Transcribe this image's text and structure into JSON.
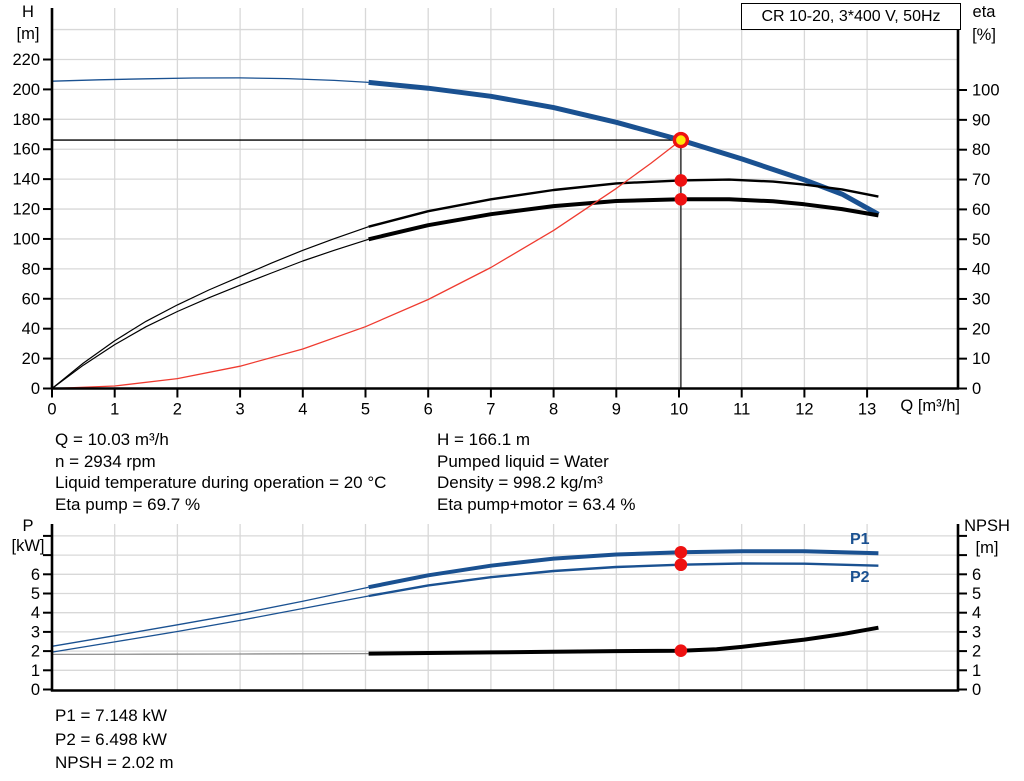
{
  "title_box": {
    "label": "CR 10-20, 3*400 V, 50Hz"
  },
  "colors": {
    "blue": "#1a5191",
    "black": "#000000",
    "red": "#ef3b30",
    "gray": "#8c8c8c",
    "grid": "#d8d8d8",
    "axis": "#000000",
    "duty_fill": "#ffe60a",
    "duty_ring": "#ee1111",
    "dot_red": "#ee1111",
    "label_blue": "#1a5191"
  },
  "top_chart": {
    "left_axis": {
      "title": "H",
      "unit": "[m]",
      "ticks": [
        0,
        20,
        40,
        60,
        80,
        100,
        120,
        140,
        160,
        180,
        200,
        220
      ]
    },
    "right_axis": {
      "title": "eta",
      "unit": "[%]",
      "ticks": [
        0,
        10,
        20,
        30,
        40,
        50,
        60,
        70,
        80,
        90,
        100
      ]
    },
    "x_axis": {
      "label": "Q [m³/h]",
      "ticks": [
        0,
        1,
        2,
        3,
        4,
        5,
        6,
        7,
        8,
        9,
        10,
        11,
        12,
        13
      ]
    }
  },
  "bottom_chart": {
    "left_axis": {
      "title": "P",
      "unit": "[kW]",
      "ticks": [
        0,
        1,
        2,
        3,
        4,
        5,
        6,
        7,
        8
      ],
      "labeled": [
        0,
        1,
        2,
        3,
        4,
        5,
        6
      ]
    },
    "right_axis": {
      "title": "NPSH",
      "unit": "[m]",
      "ticks": [
        0,
        1,
        2,
        3,
        4,
        5,
        6,
        7,
        8
      ],
      "labeled": [
        0,
        1,
        2,
        3,
        4,
        5,
        6
      ]
    },
    "curve_labels": {
      "p1": "P1",
      "p2": "P2"
    }
  },
  "info_top": {
    "left": [
      "Q = 10.03 m³/h",
      "n = 2934 rpm",
      "Liquid temperature during operation = 20 °C",
      "Eta pump = 69.7 %"
    ],
    "right": [
      "H = 166.1 m",
      "Pumped liquid = Water",
      "Density = 998.2 kg/m³",
      "Eta pump+motor = 63.4 %"
    ]
  },
  "info_bottom": [
    "P1 = 7.148 kW",
    "P2 = 6.498 kW",
    "NPSH = 2.02 m"
  ],
  "chart_data": [
    {
      "type": "line",
      "title": "CR 10-20, 3*400 V, 50Hz",
      "xlabel": "Q [m³/h]",
      "x_range": [
        0,
        14.45
      ],
      "left_axis": {
        "label": "H [m]",
        "range": [
          0,
          254
        ]
      },
      "right_axis": {
        "label": "eta [%]",
        "range": [
          0,
          127
        ]
      },
      "grid": true,
      "series": [
        {
          "name": "head-thin",
          "axis": "left",
          "color": "blue",
          "width": 1.3,
          "points": [
            [
              0,
              205.5
            ],
            [
              0.75,
              206.4
            ],
            [
              1.5,
              207.1
            ],
            [
              2.25,
              207.6
            ],
            [
              3,
              207.7
            ],
            [
              3.75,
              207.2
            ],
            [
              4.5,
              206.0
            ],
            [
              5.05,
              204.7
            ]
          ]
        },
        {
          "name": "head",
          "axis": "left",
          "color": "blue",
          "width": 5,
          "points": [
            [
              5.05,
              204.7
            ],
            [
              6,
              200.8
            ],
            [
              7,
              195.4
            ],
            [
              8,
              187.8
            ],
            [
              9,
              178.0
            ],
            [
              10.03,
              166.1
            ],
            [
              11,
              153.5
            ],
            [
              12,
              139.5
            ],
            [
              12.6,
              130.0
            ],
            [
              13.18,
              116.5
            ]
          ]
        },
        {
          "name": "eta-pump-thin",
          "axis": "right",
          "color": "black",
          "width": 1.2,
          "points": [
            [
              0,
              0
            ],
            [
              0.5,
              8.5
            ],
            [
              1,
              16.0
            ],
            [
              1.5,
              22.5
            ],
            [
              2,
              28.0
            ],
            [
              2.5,
              33.0
            ],
            [
              3,
              37.5
            ],
            [
              3.5,
              42.0
            ],
            [
              4,
              46.3
            ],
            [
              4.5,
              50.2
            ],
            [
              5.05,
              54.2
            ]
          ]
        },
        {
          "name": "eta-pump",
          "axis": "right",
          "color": "black",
          "width": 2.4,
          "points": [
            [
              5.05,
              54.2
            ],
            [
              6,
              59.4
            ],
            [
              7,
              63.4
            ],
            [
              8,
              66.5
            ],
            [
              9,
              68.7
            ],
            [
              10.03,
              69.7
            ],
            [
              10.8,
              70.0
            ],
            [
              11.5,
              69.3
            ],
            [
              12,
              68.3
            ],
            [
              12.6,
              66.7
            ],
            [
              13.18,
              64.3
            ]
          ]
        },
        {
          "name": "eta-pump-motor-thin",
          "axis": "right",
          "color": "black",
          "width": 1.2,
          "points": [
            [
              0,
              0
            ],
            [
              0.5,
              7.8
            ],
            [
              1,
              14.7
            ],
            [
              1.5,
              20.7
            ],
            [
              2,
              25.8
            ],
            [
              2.5,
              30.4
            ],
            [
              3,
              34.6
            ],
            [
              3.5,
              38.7
            ],
            [
              4,
              42.7
            ],
            [
              4.5,
              46.3
            ],
            [
              5.05,
              50.0
            ]
          ]
        },
        {
          "name": "eta-pump-motor",
          "axis": "right",
          "color": "black",
          "width": 4,
          "points": [
            [
              5.05,
              50.0
            ],
            [
              6,
              54.7
            ],
            [
              7,
              58.4
            ],
            [
              8,
              61.1
            ],
            [
              9,
              62.8
            ],
            [
              10.03,
              63.4
            ],
            [
              10.8,
              63.4
            ],
            [
              11.5,
              62.7
            ],
            [
              12,
              61.7
            ],
            [
              12.6,
              60.1
            ],
            [
              13.18,
              58.0
            ]
          ]
        },
        {
          "name": "system-curve",
          "axis": "left",
          "color": "red",
          "width": 1.3,
          "points": [
            [
              0,
              0
            ],
            [
              1,
              1.7
            ],
            [
              2,
              6.6
            ],
            [
              3,
              14.9
            ],
            [
              4,
              26.4
            ],
            [
              5,
              41.3
            ],
            [
              6,
              59.5
            ],
            [
              7,
              80.9
            ],
            [
              8,
              105.7
            ],
            [
              9,
              133.8
            ],
            [
              9.55,
              150.5
            ],
            [
              10.03,
              166.1
            ]
          ]
        }
      ],
      "duty_point": {
        "q": 10.03,
        "h": 166.1,
        "eta_pump": 69.7,
        "eta_pump_motor": 63.4
      }
    },
    {
      "type": "line",
      "xlabel": "Q [m³/h]",
      "x_range": [
        0,
        14.45
      ],
      "left_axis": {
        "label": "P [kW]",
        "range": [
          0,
          8.6
        ]
      },
      "right_axis": {
        "label": "NPSH [m]",
        "range": [
          0,
          8.6
        ]
      },
      "grid": true,
      "series": [
        {
          "name": "p1-thin",
          "axis": "left",
          "color": "blue",
          "width": 1.3,
          "points": [
            [
              0,
              2.25
            ],
            [
              1,
              2.8
            ],
            [
              2,
              3.37
            ],
            [
              3,
              3.95
            ],
            [
              4,
              4.6
            ],
            [
              5.05,
              5.33
            ]
          ]
        },
        {
          "name": "p1",
          "axis": "left",
          "color": "blue",
          "width": 4,
          "points": [
            [
              5.05,
              5.33
            ],
            [
              6,
              5.95
            ],
            [
              7,
              6.45
            ],
            [
              8,
              6.82
            ],
            [
              9,
              7.03
            ],
            [
              10.03,
              7.148
            ],
            [
              11,
              7.2
            ],
            [
              12,
              7.2
            ],
            [
              13.18,
              7.1
            ]
          ]
        },
        {
          "name": "p2-thin",
          "axis": "left",
          "color": "blue",
          "width": 1.3,
          "points": [
            [
              0,
              1.95
            ],
            [
              1,
              2.48
            ],
            [
              2,
              3.02
            ],
            [
              3,
              3.6
            ],
            [
              4,
              4.22
            ],
            [
              5.05,
              4.87
            ]
          ]
        },
        {
          "name": "p2",
          "axis": "left",
          "color": "blue",
          "width": 2.4,
          "points": [
            [
              5.05,
              4.87
            ],
            [
              6,
              5.42
            ],
            [
              7,
              5.85
            ],
            [
              8,
              6.17
            ],
            [
              9,
              6.38
            ],
            [
              10.03,
              6.498
            ],
            [
              11,
              6.56
            ],
            [
              12,
              6.55
            ],
            [
              13.18,
              6.45
            ]
          ]
        },
        {
          "name": "npsh-thin",
          "axis": "right",
          "color": "gray",
          "width": 1.3,
          "points": [
            [
              0,
              1.83
            ],
            [
              1.5,
              1.84
            ],
            [
              3,
              1.85
            ],
            [
              4,
              1.86
            ],
            [
              5.05,
              1.87
            ]
          ]
        },
        {
          "name": "npsh",
          "axis": "right",
          "color": "black",
          "width": 4,
          "points": [
            [
              5.05,
              1.87
            ],
            [
              6,
              1.9
            ],
            [
              7,
              1.93
            ],
            [
              8,
              1.97
            ],
            [
              9,
              2.0
            ],
            [
              10.03,
              2.02
            ],
            [
              10.6,
              2.1
            ],
            [
              11,
              2.22
            ],
            [
              11.6,
              2.45
            ],
            [
              12,
              2.6
            ],
            [
              12.6,
              2.88
            ],
            [
              13.18,
              3.22
            ]
          ]
        }
      ],
      "duty_dots": [
        {
          "q": 10.03,
          "value": 7.148,
          "axis": "left"
        },
        {
          "q": 10.03,
          "value": 6.498,
          "axis": "left"
        },
        {
          "q": 10.03,
          "value": 2.02,
          "axis": "right"
        }
      ]
    }
  ]
}
